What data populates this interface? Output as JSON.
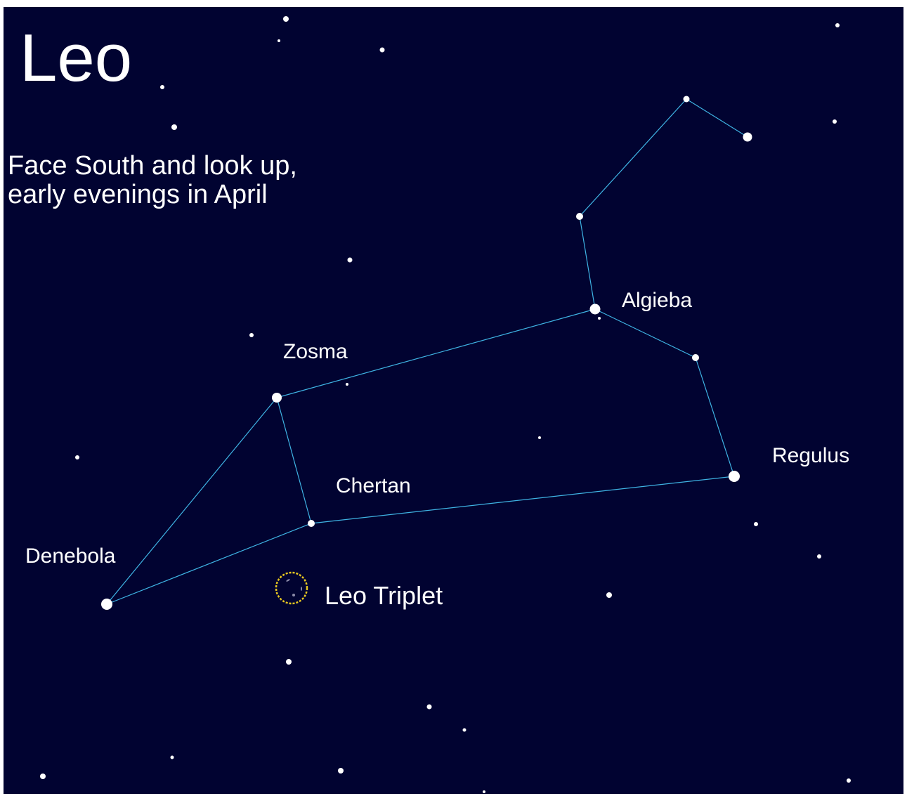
{
  "title": "Leo",
  "subtitle": [
    "Face South and look up,",
    "early evenings in April"
  ],
  "stars": [
    {
      "label": "Algieba"
    },
    {
      "label": "Zosma"
    },
    {
      "label": "Regulus"
    },
    {
      "label": "Chertan"
    },
    {
      "label": "Denebola"
    }
  ],
  "objects": [
    {
      "label": "Leo Triplet"
    }
  ]
}
